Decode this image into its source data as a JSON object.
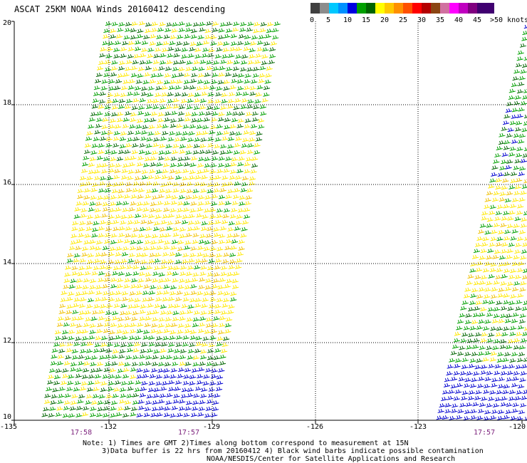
{
  "title": "ASCAT 25KM NOAA Winds 20160412 descending",
  "legend": {
    "colors": [
      "#404040",
      "#8c8c8c",
      "#00c8ff",
      "#0090ff",
      "#0000e0",
      "#00a000",
      "#006400",
      "#ffff00",
      "#ffc800",
      "#ff9000",
      "#ff5000",
      "#ff0000",
      "#b40000",
      "#8b4513",
      "#d070a0",
      "#ff00ff",
      "#c000c0",
      "#800080",
      "#400070"
    ],
    "labels": [
      "0",
      "5",
      "10",
      "15",
      "20",
      "25",
      "30",
      "35",
      "40",
      "45",
      ">50 knots"
    ]
  },
  "axes": {
    "lat_labels": [
      "20",
      "18",
      "16",
      "14",
      "12",
      "10"
    ],
    "lon_labels": [
      "-135",
      "-132",
      "-129",
      "-126",
      "-123",
      "-120"
    ]
  },
  "times": [
    "17:58",
    "17:57",
    "17:57"
  ],
  "notes": [
    "Note: 1) Times are GMT 2)Times along bottom correspond to measurement at 15N",
    "3)Data buffer is 22 hrs from 20160412 4) Black wind barbs indicate possible contamination",
    "NOAA/NESDIS/Center for Satellite Applications and Research"
  ]
}
